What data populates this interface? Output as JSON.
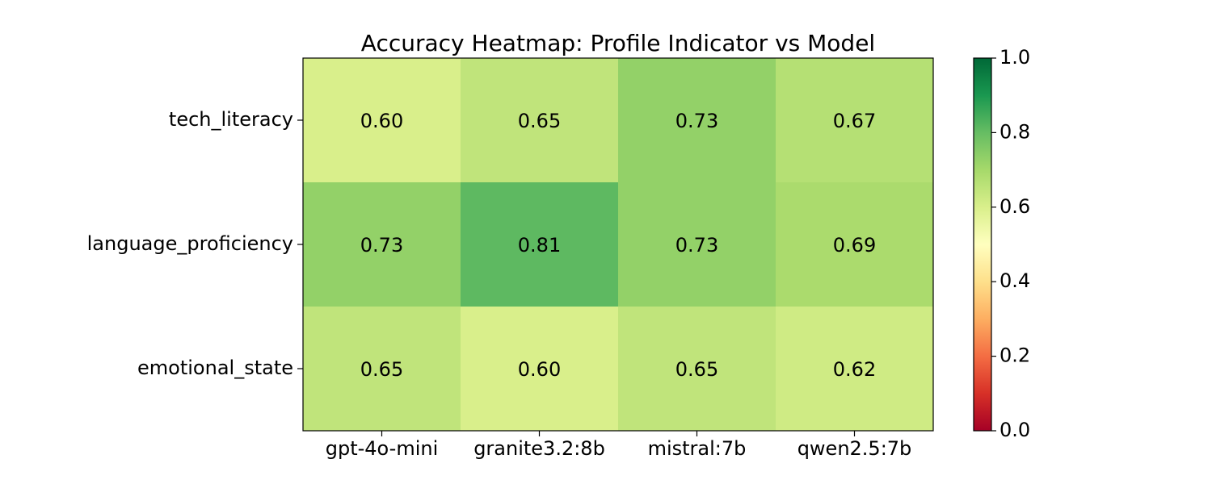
{
  "chart_data": {
    "type": "heatmap",
    "title": "Accuracy Heatmap: Profile Indicator vs Model",
    "xlabel": "",
    "ylabel": "",
    "x_categories": [
      "gpt-4o-mini",
      "granite3.2:8b",
      "mistral:7b",
      "qwen2.5:7b"
    ],
    "y_categories": [
      "tech_literacy",
      "language_proficiency",
      "emotional_state"
    ],
    "values": [
      [
        0.6,
        0.65,
        0.73,
        0.67
      ],
      [
        0.73,
        0.81,
        0.73,
        0.69
      ],
      [
        0.65,
        0.6,
        0.65,
        0.62
      ]
    ],
    "value_labels": [
      [
        "0.60",
        "0.65",
        "0.73",
        "0.67"
      ],
      [
        "0.73",
        "0.81",
        "0.73",
        "0.69"
      ],
      [
        "0.65",
        "0.60",
        "0.65",
        "0.62"
      ]
    ],
    "colormap": "RdYlGn",
    "vmin": 0.0,
    "vmax": 1.0,
    "colorbar_ticks": [
      "0.0",
      "0.2",
      "0.4",
      "0.6",
      "0.8",
      "1.0"
    ],
    "grid": false,
    "colorbar_position": "right"
  }
}
